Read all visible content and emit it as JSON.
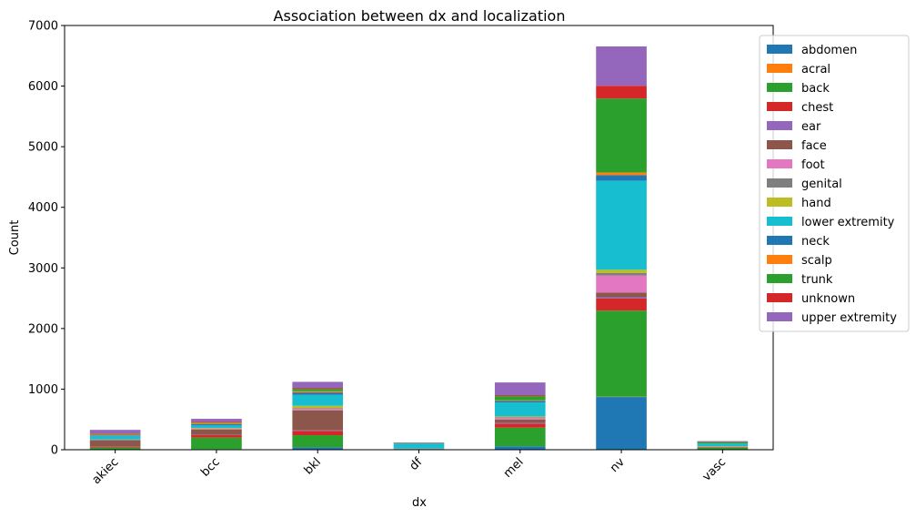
{
  "chart_data": {
    "type": "bar",
    "stacked": true,
    "title": "Association between dx and localization",
    "xlabel": "dx",
    "ylabel": "Count",
    "ylim": [
      0,
      7000
    ],
    "yticks": [
      0,
      1000,
      2000,
      3000,
      4000,
      5000,
      6000,
      7000
    ],
    "grid": false,
    "legend_position": "top-right",
    "categories": [
      "akiec",
      "bcc",
      "bkl",
      "df",
      "mel",
      "nv",
      "vasc"
    ],
    "series": [
      {
        "name": "abdomen",
        "color": "#1f77b4",
        "values": [
          5,
          10,
          40,
          2,
          55,
          870,
          5
        ]
      },
      {
        "name": "acral",
        "color": "#ff7f0e",
        "values": [
          0,
          0,
          0,
          0,
          0,
          5,
          0
        ]
      },
      {
        "name": "back",
        "color": "#2ca02c",
        "values": [
          30,
          190,
          200,
          8,
          310,
          1420,
          30
        ]
      },
      {
        "name": "chest",
        "color": "#d62728",
        "values": [
          10,
          40,
          70,
          3,
          65,
          200,
          5
        ]
      },
      {
        "name": "ear",
        "color": "#9467bd",
        "values": [
          3,
          5,
          10,
          0,
          10,
          20,
          0
        ]
      },
      {
        "name": "face",
        "color": "#8c564b",
        "values": [
          110,
          90,
          330,
          0,
          60,
          80,
          10
        ]
      },
      {
        "name": "foot",
        "color": "#e377c2",
        "values": [
          5,
          10,
          25,
          3,
          25,
          280,
          5
        ]
      },
      {
        "name": "genital",
        "color": "#7f7f7f",
        "values": [
          0,
          5,
          10,
          0,
          10,
          40,
          2
        ]
      },
      {
        "name": "hand",
        "color": "#bcbd22",
        "values": [
          5,
          10,
          40,
          2,
          15,
          55,
          3
        ]
      },
      {
        "name": "lower extremity",
        "color": "#17becf",
        "values": [
          60,
          40,
          180,
          85,
          230,
          1470,
          40
        ]
      },
      {
        "name": "neck",
        "color": "#1f77b4",
        "values": [
          10,
          20,
          40,
          0,
          25,
          90,
          2
        ]
      },
      {
        "name": "scalp",
        "color": "#ff7f0e",
        "values": [
          10,
          20,
          20,
          0,
          10,
          45,
          0
        ]
      },
      {
        "name": "trunk",
        "color": "#2ca02c",
        "values": [
          10,
          10,
          40,
          5,
          70,
          1220,
          25
        ]
      },
      {
        "name": "unknown",
        "color": "#d62728",
        "values": [
          10,
          10,
          15,
          5,
          15,
          210,
          5
        ]
      },
      {
        "name": "upper extremity",
        "color": "#9467bd",
        "values": [
          60,
          50,
          100,
          6,
          210,
          650,
          10
        ]
      }
    ]
  }
}
